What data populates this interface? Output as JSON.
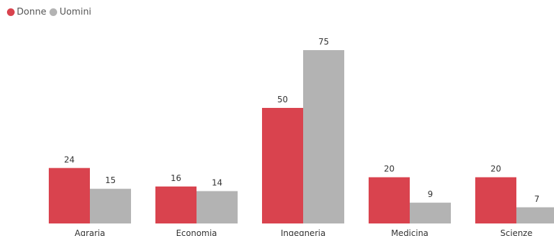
{
  "chart_data": {
    "type": "bar",
    "title": "",
    "xlabel": "",
    "ylabel": "",
    "categories": [
      "Agraria",
      "Economia",
      "Ingegneria",
      "Medicina",
      "Scienze"
    ],
    "series": [
      {
        "name": "Donne",
        "values": [
          24,
          16,
          50,
          20,
          20
        ],
        "color": "#d9434e"
      },
      {
        "name": "Uomini",
        "values": [
          15,
          14,
          75,
          9,
          7
        ],
        "color": "#b3b3b3"
      }
    ],
    "ylim": [
      0,
      75
    ],
    "grid": false,
    "legend_placement": "top-left",
    "data_labels": true
  }
}
